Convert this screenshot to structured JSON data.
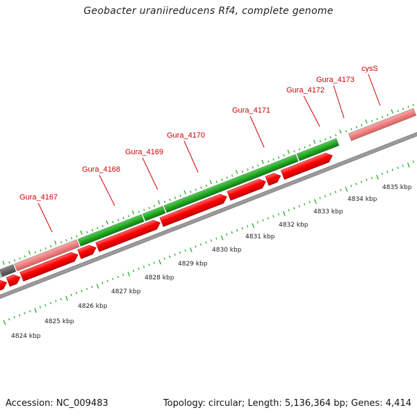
{
  "title": "Geobacter uraniireducens Rf4, complete genome",
  "footer": {
    "accession": "Accession: NC_009483",
    "summary": "Topology: circular; Length: 5,136,364 bp; Genes: 4,414"
  },
  "colors": {
    "cds_forward": "#ff0000",
    "gene_green": "#22aa22",
    "gene_pink": "#f08080",
    "gene_label": "#cc0000",
    "backbone": "#888888",
    "ticks": "#22aa22"
  },
  "gene_labels": [
    "Gura_4167",
    "Gura_4168",
    "Gura_4169",
    "Gura_4170",
    "Gura_4171",
    "Gura_4172",
    "Gura_4173",
    "cysS"
  ],
  "scale_labels": [
    "4824 kbp",
    "4825 kbp",
    "4826 kbp",
    "4827 kbp",
    "4828 kbp",
    "4829 kbp",
    "4830 kbp",
    "4831 kbp",
    "4832 kbp",
    "4833 kbp",
    "4834 kbp",
    "4835 kbp"
  ]
}
